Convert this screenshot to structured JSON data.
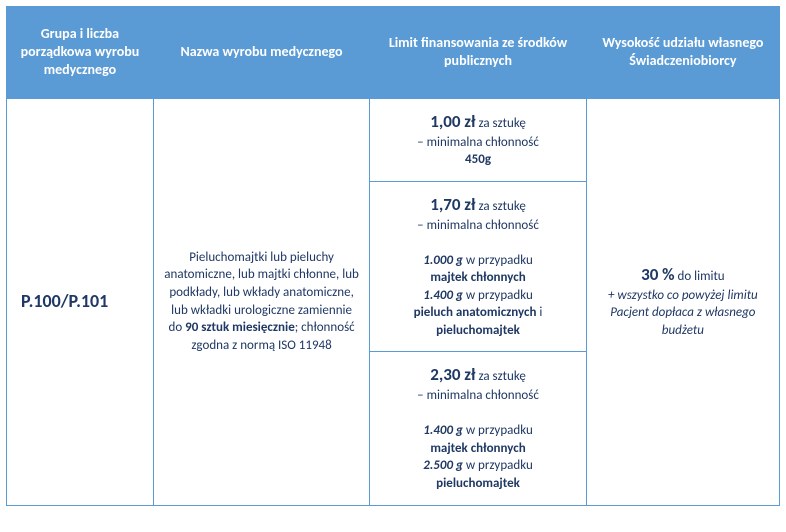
{
  "headers": {
    "col1": "Grupa i liczba porządkowa wyrobu medycznego",
    "col2": "Nazwa wyrobu medycznego",
    "col3": "Limit finansowania ze środków publicznych",
    "col4": "Wysokość udziału własnego Świadczeniobiorcy"
  },
  "group_code": "P.100/P.101",
  "product_name": {
    "line1": "Pieluchomajtki lub pieluchy anatomiczne, lub majtki chłonne, lub podkłady, lub wkłady anatomiczne, lub wkładki urologiczne zamiennie do",
    "bold1": "90 sztuk miesięcznie",
    "line2": "; chłonność zgodna z normą ISO 11948"
  },
  "limits": {
    "r1": {
      "price": "1,00 zł",
      "per": " za sztukę",
      "sub": "– minimalna chłonność",
      "g": "450g"
    },
    "r2": {
      "price": "1,70 zł",
      "per": " za sztukę",
      "sub": "– minimalna chłonność",
      "g1": "1.000 g",
      "t1": " w przypadku",
      "p1": "majtek chłonnych",
      "g2": "1.400 g",
      "t2": " w przypadku",
      "p2a": "pieluch anatomicznych",
      "and": " i",
      "p2b": "pieluchomajtek"
    },
    "r3": {
      "price": "2,30 zł",
      "per": " za sztukę",
      "sub": "– minimalna chłonność",
      "g1": "1.400 g",
      "t1": " w przypadku",
      "p1": "majtek chłonnych",
      "g2": "2.500 g",
      "t2": " w przypadku",
      "p2": "pieluchomajtek"
    }
  },
  "share": {
    "pct": "30 %",
    "pct_after": " do limitu",
    "note": "+ wszystko co powyżej limitu Pacjent dopłaca z własnego budżetu"
  }
}
